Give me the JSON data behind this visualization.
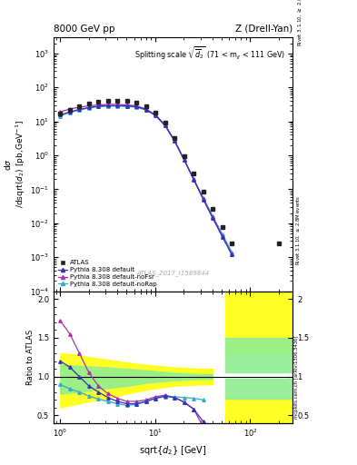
{
  "title_left": "8000 GeV pp",
  "title_right": "Z (Drell-Yan)",
  "plot_title": "Splitting scale $\\sqrt{\\overline{d}_2}$ (71 < m$_{ll}$ < 111 GeV)",
  "watermark": "ATLAS_2017_I1589844",
  "atlas_x": [
    1.0,
    1.26,
    1.59,
    2.0,
    2.52,
    3.17,
    4.0,
    5.04,
    6.35,
    8.0,
    10.08,
    12.7,
    16.0,
    20.16,
    25.4,
    32.0,
    40.32,
    50.79,
    64.0,
    200.0
  ],
  "atlas_y": [
    17.0,
    22.0,
    27.0,
    33.0,
    38.0,
    40.0,
    40.0,
    39.0,
    36.0,
    28.0,
    18.0,
    9.0,
    3.2,
    0.95,
    0.29,
    0.085,
    0.026,
    0.0075,
    0.0025,
    0.0025
  ],
  "pythia_default_x": [
    1.0,
    1.26,
    1.59,
    2.0,
    2.52,
    3.17,
    4.0,
    5.04,
    6.35,
    8.0,
    10.08,
    12.7,
    16.0,
    20.16,
    25.4,
    32.0,
    40.32,
    50.79,
    64.0
  ],
  "pythia_default_y": [
    15.5,
    19.0,
    22.5,
    25.5,
    28.0,
    29.0,
    29.0,
    28.5,
    27.0,
    22.0,
    15.0,
    7.5,
    2.6,
    0.72,
    0.19,
    0.05,
    0.014,
    0.004,
    0.0012
  ],
  "pythia_nofsr_x": [
    1.0,
    1.26,
    1.59,
    2.0,
    2.52,
    3.17,
    4.0,
    5.04,
    6.35,
    8.0,
    10.08,
    12.7,
    16.0,
    20.16,
    25.4,
    32.0,
    40.32,
    50.79,
    64.0
  ],
  "pythia_nofsr_y": [
    19.0,
    23.0,
    26.0,
    28.5,
    30.5,
    31.5,
    31.5,
    30.5,
    28.5,
    23.0,
    15.5,
    7.8,
    2.7,
    0.75,
    0.2,
    0.053,
    0.0148,
    0.0042,
    0.0012
  ],
  "pythia_norap_x": [
    1.0,
    1.26,
    1.59,
    2.0,
    2.52,
    3.17,
    4.0,
    5.04,
    6.35,
    8.0,
    10.08,
    12.7,
    16.0,
    20.16,
    25.4,
    32.0,
    40.32,
    50.79,
    64.0
  ],
  "pythia_norap_y": [
    14.5,
    18.0,
    21.5,
    24.5,
    27.0,
    28.0,
    28.0,
    27.5,
    26.0,
    21.5,
    14.8,
    7.4,
    2.6,
    0.74,
    0.2,
    0.056,
    0.016,
    0.0048,
    0.0014
  ],
  "ratio_default_x": [
    1.0,
    1.26,
    1.59,
    2.0,
    2.52,
    3.17,
    4.0,
    5.04,
    6.35,
    8.0,
    10.08,
    12.7,
    16.0,
    20.16,
    25.4,
    32.0
  ],
  "ratio_default_y": [
    1.2,
    1.12,
    1.0,
    0.88,
    0.8,
    0.73,
    0.68,
    0.65,
    0.65,
    0.68,
    0.72,
    0.75,
    0.73,
    0.67,
    0.58,
    0.42
  ],
  "ratio_nofsr_x": [
    1.0,
    1.26,
    1.59,
    2.0,
    2.52,
    3.17,
    4.0,
    5.04,
    6.35,
    8.0,
    10.08,
    12.7,
    16.0,
    20.16,
    25.4,
    32.0
  ],
  "ratio_nofsr_y": [
    1.72,
    1.55,
    1.3,
    1.05,
    0.88,
    0.78,
    0.72,
    0.68,
    0.68,
    0.7,
    0.74,
    0.76,
    0.73,
    0.67,
    0.58,
    0.35
  ],
  "ratio_norap_x": [
    1.0,
    1.26,
    1.59,
    2.0,
    2.52,
    3.17,
    4.0,
    5.04,
    6.35,
    8.0,
    10.08,
    12.7,
    16.0,
    20.16,
    25.4,
    32.0
  ],
  "ratio_norap_y": [
    0.9,
    0.84,
    0.8,
    0.75,
    0.71,
    0.68,
    0.65,
    0.63,
    0.64,
    0.68,
    0.72,
    0.74,
    0.74,
    0.73,
    0.72,
    0.7
  ],
  "color_atlas": "#222222",
  "color_default": "#3333bb",
  "color_nofsr": "#aa33aa",
  "color_norap": "#33aacc",
  "ylim_main": [
    0.0001,
    3000.0
  ],
  "ylim_ratio": [
    0.4,
    2.1
  ],
  "xlim_lo": 0.85,
  "xlim_hi": 280.0
}
